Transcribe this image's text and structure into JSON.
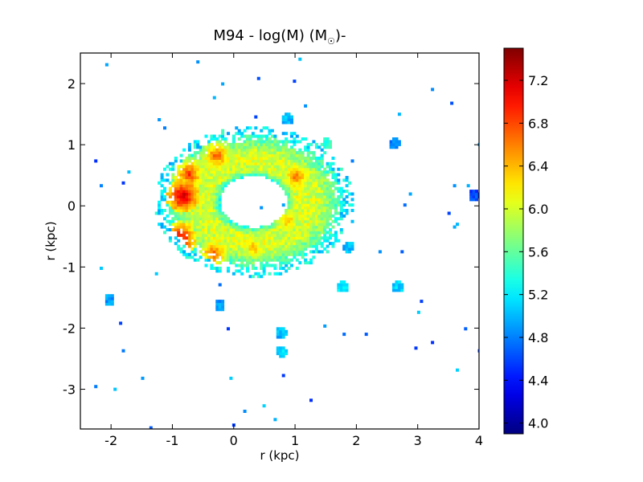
{
  "chart_data": {
    "type": "heatmap",
    "title": "M94 - log(M) (M",
    "title_subscript": "☉",
    "title_suffix": ")-",
    "xlabel": "r (kpc)",
    "ylabel": "r (kpc)",
    "xlim": [
      -2.5,
      4.0
    ],
    "ylim": [
      -3.65,
      2.5
    ],
    "xticks": [
      -2,
      -1,
      0,
      1,
      2,
      3,
      4
    ],
    "yticks": [
      -3,
      -2,
      -1,
      0,
      1,
      2
    ],
    "x_tick_labels": [
      "-2",
      "-1",
      "0",
      "1",
      "2",
      "3",
      "4"
    ],
    "y_tick_labels": [
      "-3",
      "-2",
      "-1",
      "0",
      "1",
      "2"
    ],
    "colorbar": {
      "colormap": "jet",
      "range": [
        3.9,
        7.5
      ],
      "ticks": [
        4.0,
        4.4,
        4.8,
        5.2,
        5.6,
        6.0,
        6.4,
        6.8,
        7.2
      ],
      "tick_labels": [
        "4.0",
        "4.4",
        "4.8",
        "5.2",
        "5.6",
        "6.0",
        "6.4",
        "6.8",
        "7.2"
      ]
    },
    "structure": {
      "ring": {
        "center": [
          0.3,
          0.05
        ],
        "outer_radius_x": 1.45,
        "outer_radius_y": 1.1,
        "inner_radius_x": 0.55,
        "inner_radius_y": 0.42,
        "typical_value": 5.7
      },
      "peaks": [
        {
          "x": -0.85,
          "y": 0.15,
          "value": 7.3
        },
        {
          "x": -0.9,
          "y": -0.55,
          "value": 7.2
        },
        {
          "x": -0.75,
          "y": 0.5,
          "value": 6.9
        },
        {
          "x": -0.3,
          "y": 0.8,
          "value": 6.8
        },
        {
          "x": 1.0,
          "y": 0.45,
          "value": 6.7
        },
        {
          "x": -0.35,
          "y": -0.8,
          "value": 6.8
        },
        {
          "x": 0.85,
          "y": -0.25,
          "value": 6.5
        },
        {
          "x": 0.3,
          "y": -0.7,
          "value": 6.5
        }
      ],
      "clumps": [
        {
          "x": 1.85,
          "y": -0.7,
          "value": 5.0
        },
        {
          "x": 0.75,
          "y": -2.1,
          "value": 5.0
        },
        {
          "x": 0.75,
          "y": -2.4,
          "value": 5.1
        },
        {
          "x": -0.25,
          "y": -1.65,
          "value": 4.9
        },
        {
          "x": 2.65,
          "y": -1.35,
          "value": 5.1
        },
        {
          "x": 1.75,
          "y": -1.35,
          "value": 5.2
        },
        {
          "x": 1.5,
          "y": 1.0,
          "value": 5.4
        },
        {
          "x": 0.85,
          "y": 1.4,
          "value": 5.0
        },
        {
          "x": 2.6,
          "y": 1.0,
          "value": 4.8
        },
        {
          "x": -2.05,
          "y": -1.55,
          "value": 4.9
        },
        {
          "x": 3.9,
          "y": 0.15,
          "value": 4.6
        }
      ]
    }
  }
}
